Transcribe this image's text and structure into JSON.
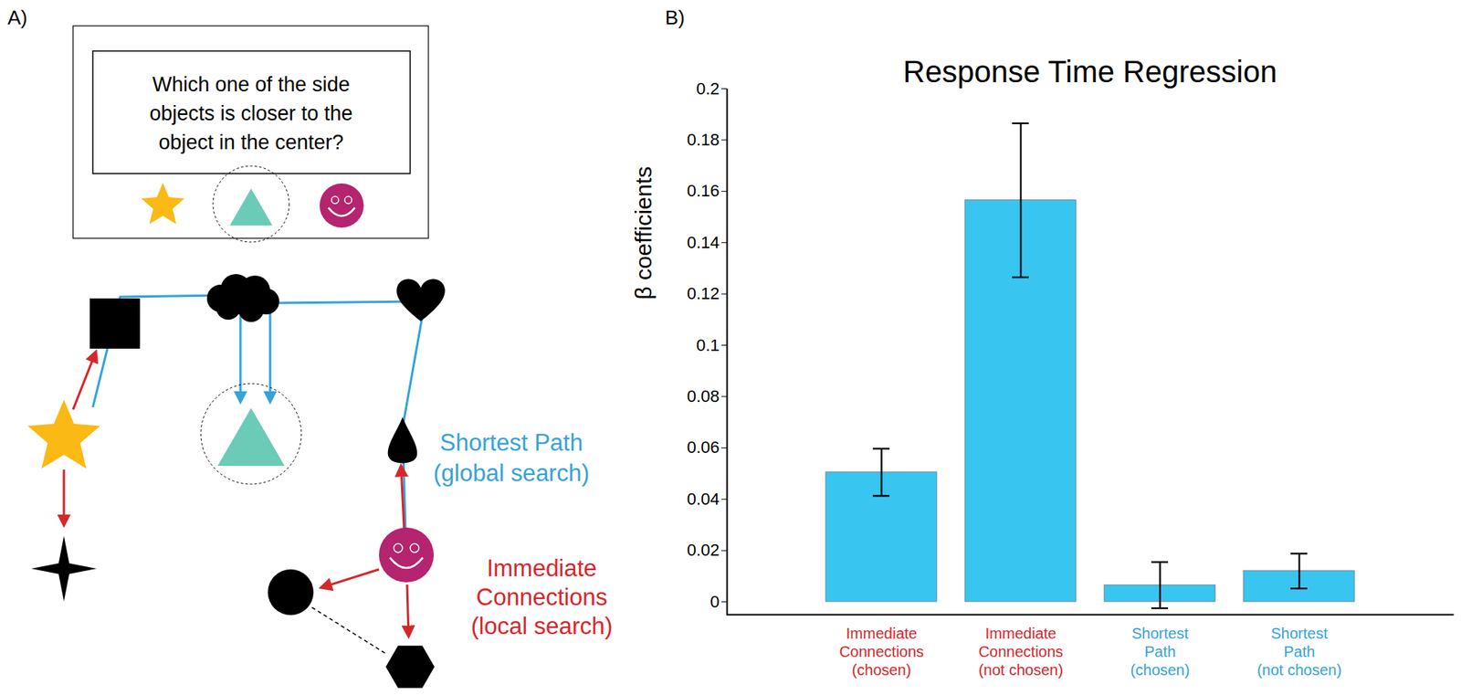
{
  "panel_labels": [
    "A)",
    "B)"
  ],
  "diagram": {
    "question": "Which one of the side\nobjects is closer to the\nobject in the center?",
    "global_label": "Shortest Path\n(global search)",
    "local_label": "Immediate\nConnections\n(local search)"
  },
  "chart_data": {
    "type": "bar",
    "title": "Response Time Regression",
    "y_label": "β coefficients",
    "categories": [
      "Immediate\nConnections\n(chosen)",
      "Immediate\nConnections\n(not chosen)",
      "Shortest\nPath\n(chosen)",
      "Shortest\nPath\n(not chosen)"
    ],
    "values": [
      0.0505,
      0.1565,
      0.0065,
      0.012
    ],
    "errors": [
      0.0092,
      0.03,
      0.009,
      0.0068
    ],
    "color": "#38c5f0",
    "ylim": [
      -0.005,
      0.2
    ],
    "yticks": [
      0,
      0.02,
      0.04,
      0.06,
      0.08,
      0.1,
      0.12,
      0.14,
      0.16,
      0.18,
      0.2
    ],
    "grid": false
  }
}
